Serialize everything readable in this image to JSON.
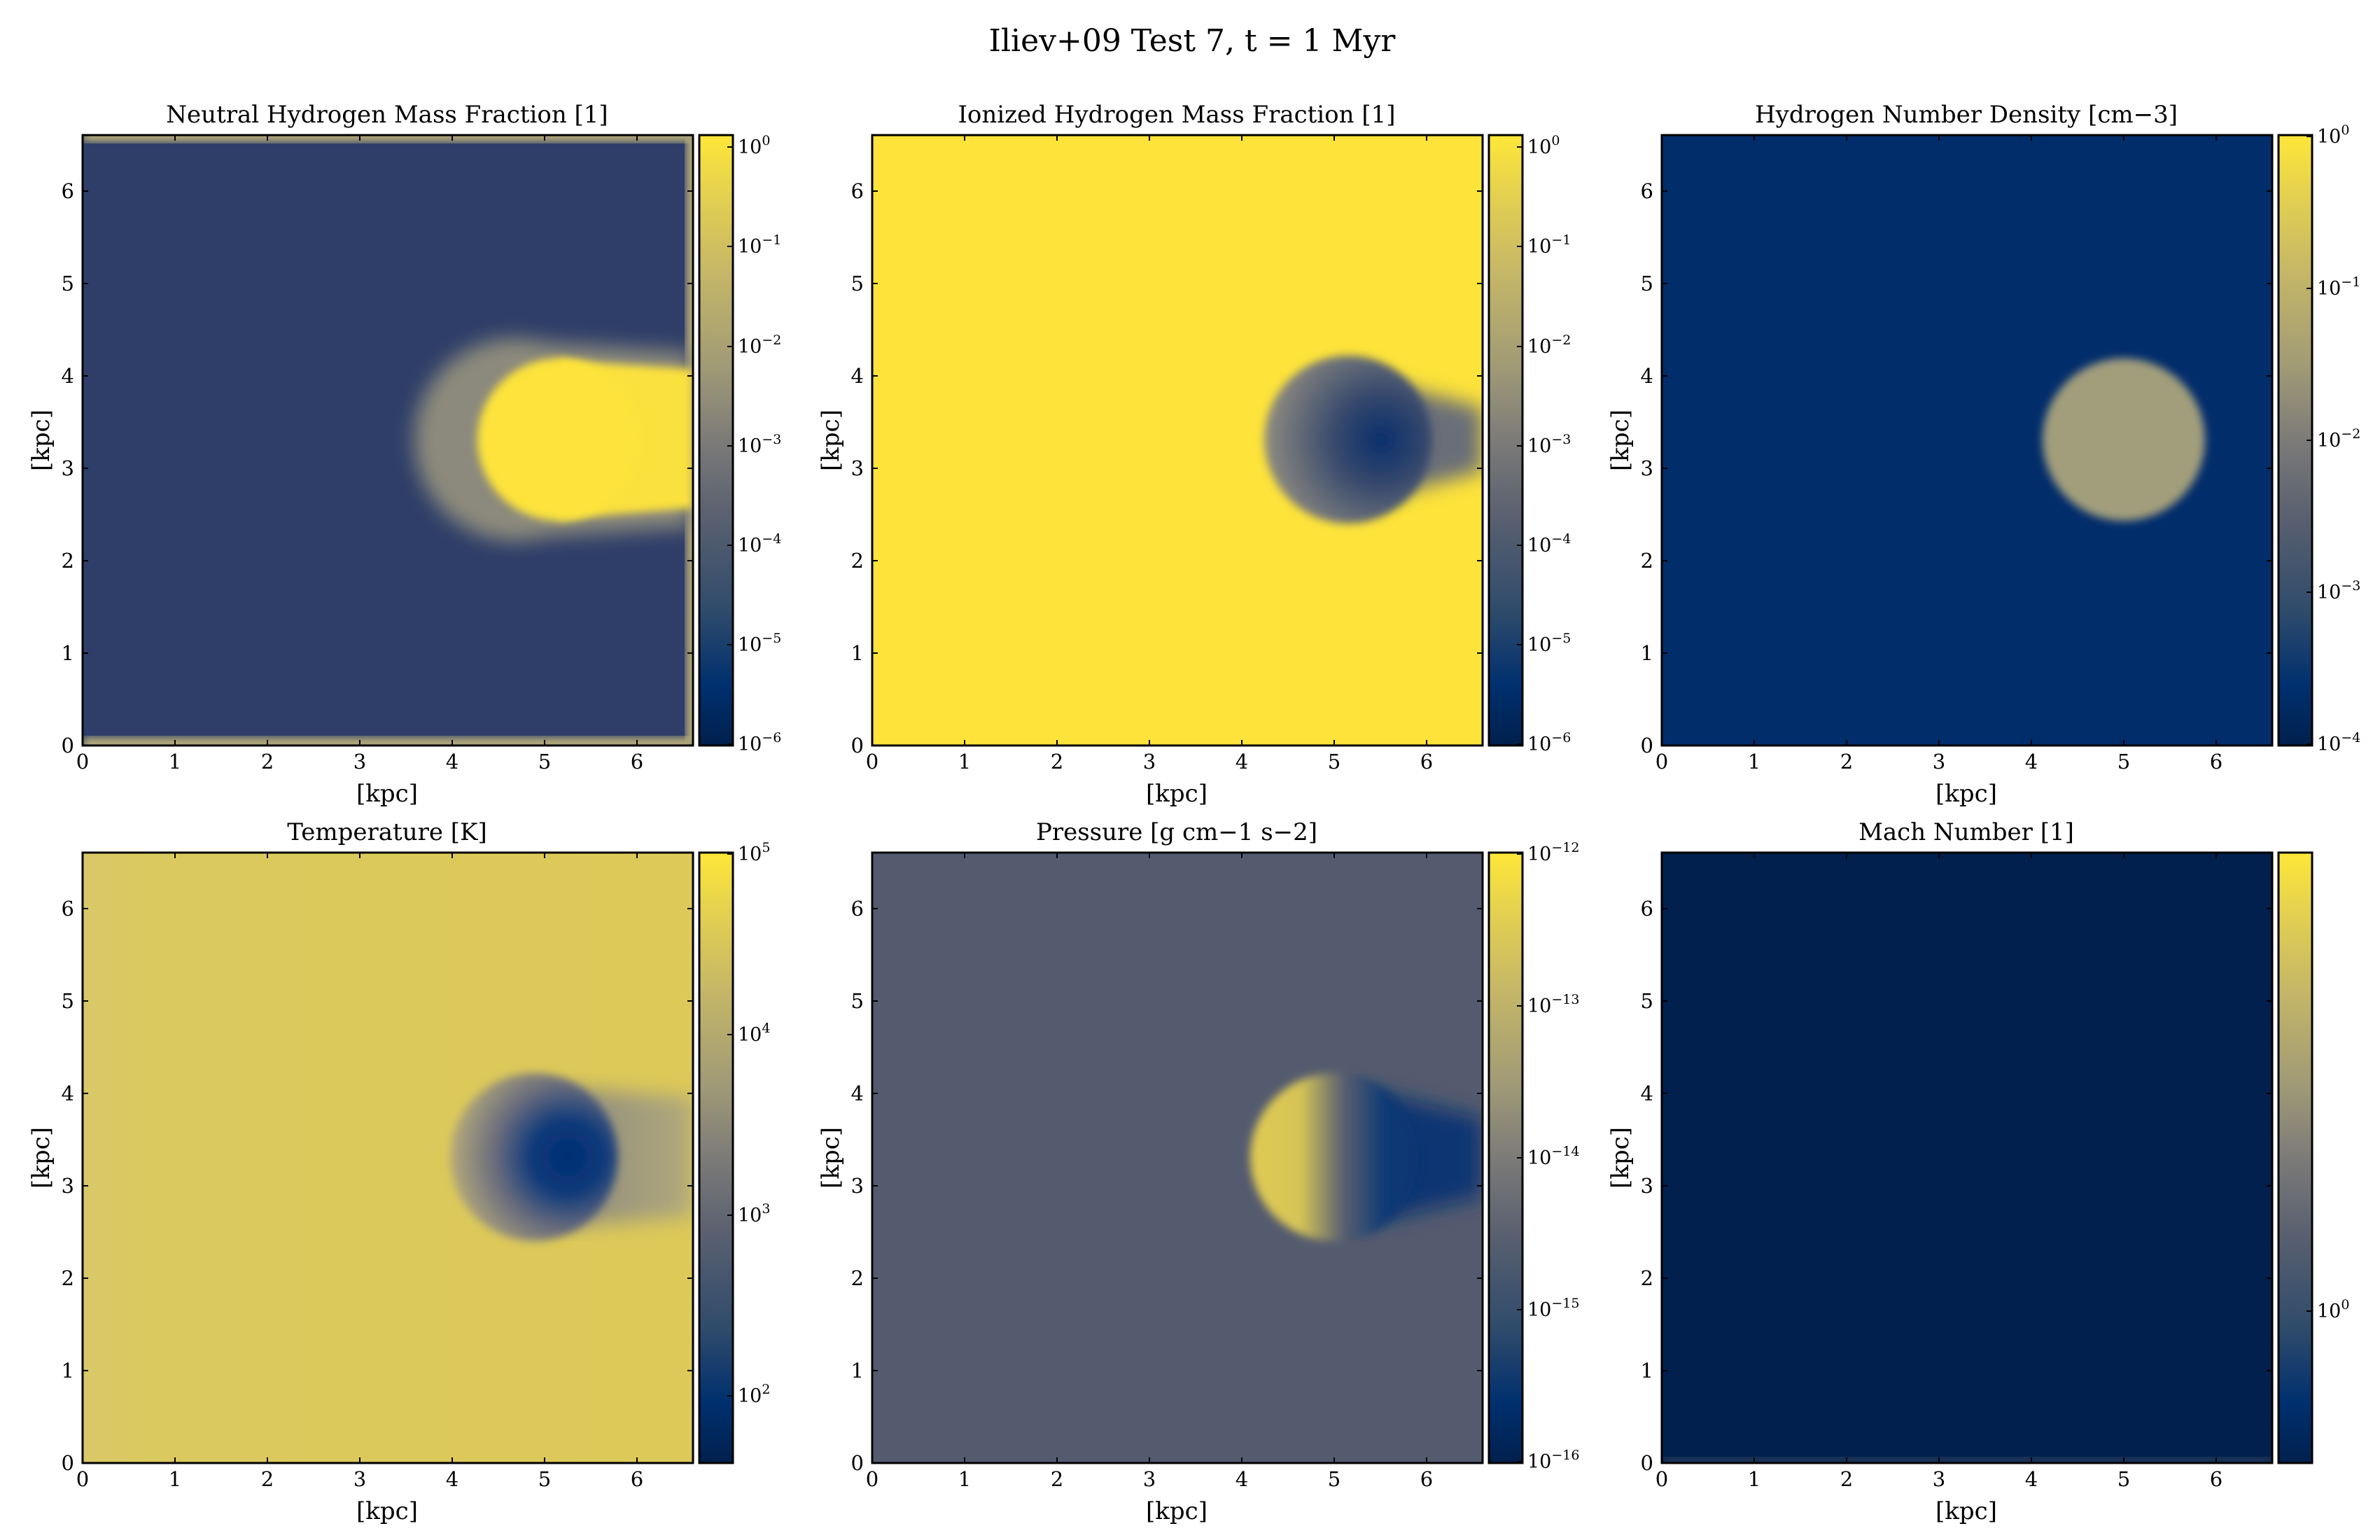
{
  "figure": {
    "title": "Iliev+09 Test 7, t = 1 Myr"
  },
  "chart_data": [
    {
      "type": "heatmap",
      "title": "Neutral Hydrogen Mass Fraction [1]",
      "xlabel": "[kpc]",
      "ylabel": "[kpc]",
      "xlim": [
        0,
        6.6
      ],
      "ylim": [
        0,
        6.6
      ],
      "xticks": [
        "0",
        "1",
        "2",
        "3",
        "4",
        "5",
        "6"
      ],
      "yticks": [
        "0",
        "1",
        "2",
        "3",
        "4",
        "5",
        "6"
      ],
      "colorbar": {
        "scale": "log",
        "range": [
          1e-06,
          1.3
        ],
        "ticks": [
          {
            "mantissa": "10",
            "exp": "0"
          },
          {
            "mantissa": "10",
            "exp": "−1"
          },
          {
            "mantissa": "10",
            "exp": "−2"
          },
          {
            "mantissa": "10",
            "exp": "−3"
          },
          {
            "mantissa": "10",
            "exp": "−4"
          },
          {
            "mantissa": "10",
            "exp": "−5"
          },
          {
            "mantissa": "10",
            "exp": "−6"
          }
        ]
      },
      "field": {
        "background": "#2e3e68",
        "clump": "#fde33a",
        "clump_center_kpc": [
          5.0,
          3.3
        ],
        "clump_radius_kpc": 0.8,
        "tail": "#fbe13c",
        "features": "neutral shadow to the right of the clump; ionized halo on the illuminated side"
      }
    },
    {
      "type": "heatmap",
      "title": "Ionized Hydrogen Mass Fraction [1]",
      "xlabel": "[kpc]",
      "ylabel": "[kpc]",
      "xlim": [
        0,
        6.6
      ],
      "ylim": [
        0,
        6.6
      ],
      "xticks": [
        "0",
        "1",
        "2",
        "3",
        "4",
        "5",
        "6"
      ],
      "yticks": [
        "0",
        "1",
        "2",
        "3",
        "4",
        "5",
        "6"
      ],
      "colorbar": {
        "scale": "log",
        "range": [
          1e-06,
          1.3
        ],
        "ticks": [
          {
            "mantissa": "10",
            "exp": "0"
          },
          {
            "mantissa": "10",
            "exp": "−1"
          },
          {
            "mantissa": "10",
            "exp": "−2"
          },
          {
            "mantissa": "10",
            "exp": "−3"
          },
          {
            "mantissa": "10",
            "exp": "−4"
          },
          {
            "mantissa": "10",
            "exp": "−5"
          },
          {
            "mantissa": "10",
            "exp": "−6"
          }
        ]
      },
      "field": {
        "background": "#fde33a",
        "clump_edge": "#8a8c8e",
        "clump_core": "#123a78",
        "clump_center_kpc": [
          5.0,
          3.3
        ],
        "clump_radius_kpc": 0.8
      }
    },
    {
      "type": "heatmap",
      "title": "Hydrogen Number Density [cm−3]",
      "xlabel": "[kpc]",
      "ylabel": "[kpc]",
      "xlim": [
        0,
        6.6
      ],
      "ylim": [
        0,
        6.6
      ],
      "xticks": [
        "0",
        "1",
        "2",
        "3",
        "4",
        "5",
        "6"
      ],
      "yticks": [
        "0",
        "1",
        "2",
        "3",
        "4",
        "5",
        "6"
      ],
      "colorbar": {
        "scale": "log",
        "range": [
          0.0001,
          1
        ],
        "ticks": [
          {
            "mantissa": "10",
            "exp": "0"
          },
          {
            "mantissa": "10",
            "exp": "−1"
          },
          {
            "mantissa": "10",
            "exp": "−2"
          },
          {
            "mantissa": "10",
            "exp": "−3"
          },
          {
            "mantissa": "10",
            "exp": "−4"
          }
        ]
      },
      "field": {
        "background": "#022d6b",
        "clump": "#a29e7c",
        "clump_center_kpc": [
          5.0,
          3.3
        ],
        "clump_radius_kpc": 0.8
      }
    },
    {
      "type": "heatmap",
      "title": "Temperature [K]",
      "xlabel": "[kpc]",
      "ylabel": "[kpc]",
      "xlim": [
        0,
        6.6
      ],
      "ylim": [
        0,
        6.6
      ],
      "xticks": [
        "0",
        "1",
        "2",
        "3",
        "4",
        "5",
        "6"
      ],
      "yticks": [
        "0",
        "1",
        "2",
        "3",
        "4",
        "5",
        "6"
      ],
      "colorbar": {
        "scale": "log",
        "range": [
          40,
          100000.0
        ],
        "ticks": [
          {
            "mantissa": "10",
            "exp": "5"
          },
          {
            "mantissa": "10",
            "exp": "4"
          },
          {
            "mantissa": "10",
            "exp": "3"
          },
          {
            "mantissa": "10",
            "exp": "2"
          }
        ]
      },
      "field": {
        "background": "#dcc85a",
        "clump_edge": "#b3a77b",
        "clump_core": "#0a3575",
        "tail": "#a8a180",
        "clump_center_kpc": [
          5.0,
          3.3
        ],
        "clump_radius_kpc": 0.8
      }
    },
    {
      "type": "heatmap",
      "title": "Pressure [g cm−1 s−2]",
      "xlabel": "[kpc]",
      "ylabel": "[kpc]",
      "xlim": [
        0,
        6.6
      ],
      "ylim": [
        0,
        6.6
      ],
      "xticks": [
        "0",
        "1",
        "2",
        "3",
        "4",
        "5",
        "6"
      ],
      "yticks": [
        "0",
        "1",
        "2",
        "3",
        "4",
        "5",
        "6"
      ],
      "colorbar": {
        "scale": "log",
        "range": [
          1e-16,
          1e-12
        ],
        "ticks": [
          {
            "mantissa": "10",
            "exp": "−12"
          },
          {
            "mantissa": "10",
            "exp": "−13"
          },
          {
            "mantissa": "10",
            "exp": "−14"
          },
          {
            "mantissa": "10",
            "exp": "−15"
          },
          {
            "mantissa": "10",
            "exp": "−16"
          }
        ]
      },
      "field": {
        "background": "#545b6f",
        "clump_edge": "#ddc955",
        "clump_core": "#0e3a74",
        "tail": "#0c3572",
        "clump_center_kpc": [
          5.0,
          3.3
        ],
        "clump_radius_kpc": 0.8
      }
    },
    {
      "type": "heatmap",
      "title": "Mach Number [1]",
      "xlabel": "[kpc]",
      "ylabel": "[kpc]",
      "xlim": [
        0,
        6.6
      ],
      "ylim": [
        0,
        6.6
      ],
      "xticks": [
        "0",
        "1",
        "2",
        "3",
        "4",
        "5",
        "6"
      ],
      "yticks": [
        "0",
        "1",
        "2",
        "3",
        "4",
        "5",
        "6"
      ],
      "colorbar": {
        "scale": "log",
        "range": [
          0.3,
          100
        ],
        "ticks": [
          {
            "mantissa": "10",
            "exp": "0"
          }
        ]
      },
      "field": {
        "background": "#01204d"
      }
    }
  ]
}
